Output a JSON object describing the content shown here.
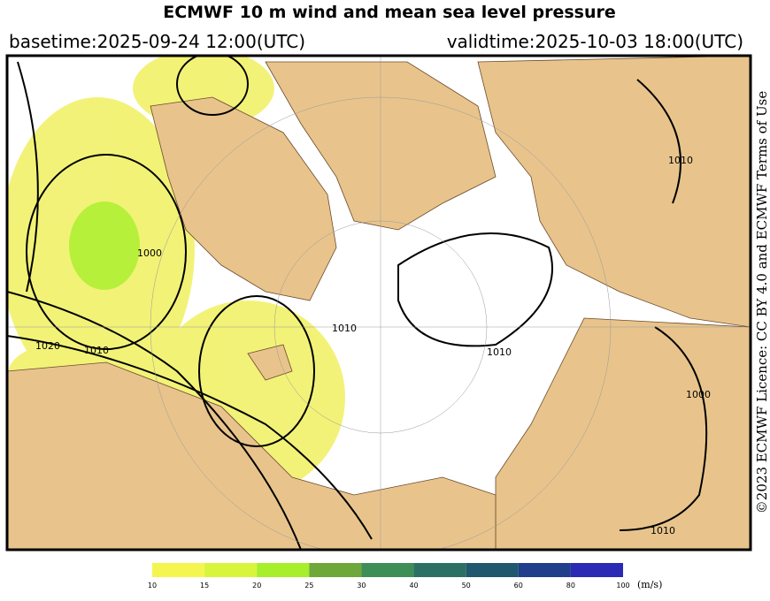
{
  "header": {
    "title": "ECMWF 10 m wind and mean sea level pressure",
    "basetime": "basetime:2025-09-24 12:00(UTC)",
    "validtime": "validtime:2025-10-03 18:00(UTC)"
  },
  "license": "©2023 ECMWF Licence: CC BY 4.0 and ECMWF Terms of Use",
  "map": {
    "isobar_labels": [
      "1020",
      "1010",
      "1000",
      "1010",
      "1010",
      "1000",
      "1010",
      "1010"
    ]
  },
  "colorbar": {
    "ticks": [
      10,
      15,
      20,
      25,
      30,
      40,
      50,
      60,
      80,
      100
    ],
    "colors": [
      "#f5f550",
      "#d8f53c",
      "#a6ef2a",
      "#6ea83a",
      "#3e8e58",
      "#2c7064",
      "#20586e",
      "#1f3f8c",
      "#2a2ab4"
    ],
    "unit": "(m/s)"
  }
}
